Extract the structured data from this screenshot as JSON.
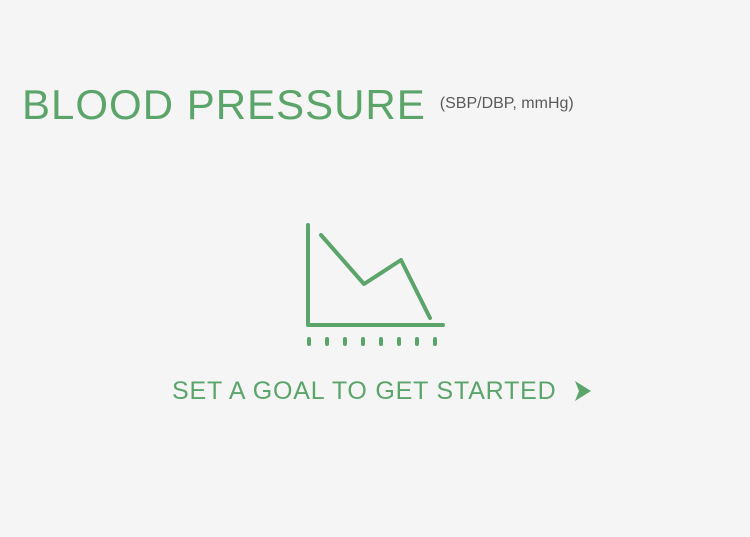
{
  "card": {
    "title": "BLOOD PRESSURE",
    "unit": "(SBP/DBP, mmHg)",
    "cta_label": "SET A GOAL TO GET STARTED",
    "empty_state_icon": "line-chart-icon",
    "cta_icon": "play-triangle-icon"
  },
  "colors": {
    "accent": "#5ba56b",
    "background": "#f5f5f5",
    "secondary_text": "#5a5a5a"
  }
}
